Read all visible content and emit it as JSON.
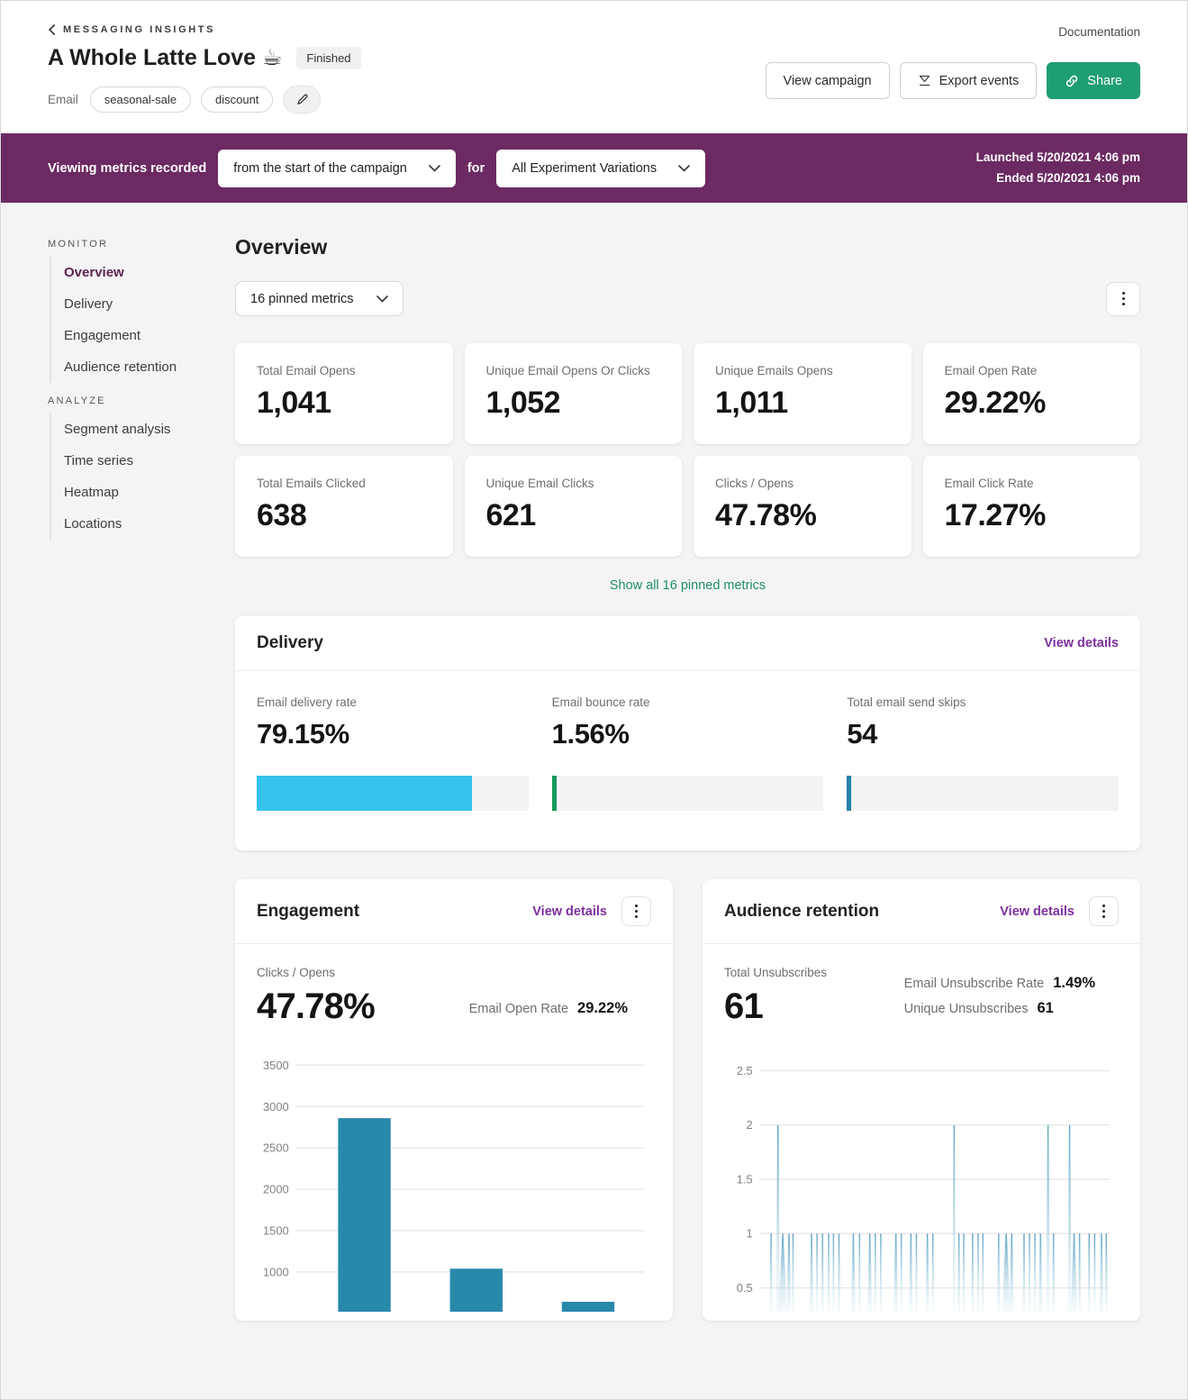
{
  "header": {
    "breadcrumb": "MESSAGING INSIGHTS",
    "title": "A Whole Latte Love ☕",
    "status_badge": "Finished",
    "channel_label": "Email",
    "tags": [
      "seasonal-sale",
      "discount"
    ],
    "documentation_link": "Documentation",
    "view_campaign_button": "View campaign",
    "export_events_button": "Export events",
    "share_button": "Share",
    "share_color": "#1f9e73"
  },
  "filter_bar": {
    "label": "Viewing metrics recorded",
    "range_dropdown": "from the start of the campaign",
    "connector": "for",
    "variation_dropdown": "All Experiment Variations",
    "launched": "Launched 5/20/2021 4:06 pm",
    "ended": "Ended 5/20/2021 4:06 pm",
    "background_color": "#6b2a62"
  },
  "sidebar": {
    "monitor_heading": "MONITOR",
    "monitor_items": [
      "Overview",
      "Delivery",
      "Engagement",
      "Audience retention"
    ],
    "active_item": "Overview",
    "analyze_heading": "ANALYZE",
    "analyze_items": [
      "Segment analysis",
      "Time series",
      "Heatmap",
      "Locations"
    ]
  },
  "overview": {
    "title": "Overview",
    "pinned_dropdown": "16 pinned metrics",
    "show_all_link": "Show all 16 pinned metrics",
    "cards": [
      {
        "label": "Total Email Opens",
        "value": "1,041"
      },
      {
        "label": "Unique Email Opens Or Clicks",
        "value": "1,052"
      },
      {
        "label": "Unique Emails Opens",
        "value": "1,011"
      },
      {
        "label": "Email Open Rate",
        "value": "29.22%"
      },
      {
        "label": "Total Emails Clicked",
        "value": "638"
      },
      {
        "label": "Unique Email Clicks",
        "value": "621"
      },
      {
        "label": "Clicks / Opens",
        "value": "47.78%"
      },
      {
        "label": "Email Click Rate",
        "value": "17.27%"
      }
    ]
  },
  "delivery": {
    "title": "Delivery",
    "view_details": "View details",
    "metrics": [
      {
        "label": "Email delivery rate",
        "value": "79.15%",
        "bar_fill_pct": 79.15,
        "bar_color": "#35c3ee"
      },
      {
        "label": "Email bounce rate",
        "value": "1.56%",
        "bar_fill_pct": 1.8,
        "bar_color": "#159a5c"
      },
      {
        "label": "Total email send skips",
        "value": "54",
        "bar_fill_pct": 1.6,
        "bar_color": "#2583ab"
      }
    ]
  },
  "engagement": {
    "title": "Engagement",
    "view_details": "View details",
    "primary_label": "Clicks / Opens",
    "primary_value": "47.78%",
    "secondary_label": "Email Open Rate",
    "secondary_value": "29.22%"
  },
  "audience_retention": {
    "title": "Audience retention",
    "view_details": "View details",
    "primary_label": "Total Unsubscribes",
    "primary_value": "61",
    "side_rows": [
      {
        "label": "Email Unsubscribe Rate",
        "value": "1.49%"
      },
      {
        "label": "Unique Unsubscribes",
        "value": "61"
      }
    ]
  },
  "icons": {
    "back": "chevron-left",
    "edit": "pencil",
    "export": "download-tray",
    "share": "link",
    "dropdown": "chevron-down",
    "menu": "kebab-vertical"
  },
  "chart_data": [
    {
      "id": "engagement",
      "type": "bar",
      "title": "",
      "values": [
        2860,
        1040,
        640
      ],
      "yticks": [
        1000,
        1500,
        2000,
        2500,
        3000,
        3500
      ],
      "ymin_visible": 520,
      "ymax_visible": 3700,
      "bar_color": "#2889ab",
      "grid": true,
      "note": "x-axis category labels are clipped by the card edge"
    },
    {
      "id": "audience_retention",
      "type": "area-spikes",
      "title": "",
      "yticks": [
        0.5,
        1,
        1.5,
        2,
        2.5
      ],
      "ymin_visible": 0.28,
      "ymax_visible": 2.72,
      "spike_gradient_top": "#58a0c2",
      "spike_gradient_bottom": "#d9ecf4",
      "grid": true,
      "spikes": [
        [
          1.2,
          1,
          3
        ],
        [
          3.2,
          2,
          4
        ],
        [
          4.6,
          1,
          9
        ],
        [
          6.4,
          1,
          5
        ],
        [
          7.6,
          1,
          2
        ],
        [
          13.0,
          1,
          4
        ],
        [
          14.6,
          1,
          2
        ],
        [
          16.2,
          1,
          3
        ],
        [
          18.0,
          1,
          2
        ],
        [
          19.4,
          1,
          2
        ],
        [
          21.0,
          1,
          3
        ],
        [
          25.2,
          1,
          5
        ],
        [
          27.0,
          1,
          2
        ],
        [
          30.0,
          1,
          5
        ],
        [
          31.6,
          1,
          2
        ],
        [
          33.2,
          1,
          2
        ],
        [
          37.6,
          1,
          5
        ],
        [
          39.2,
          1,
          2
        ],
        [
          42.0,
          1,
          4
        ],
        [
          43.6,
          1,
          2
        ],
        [
          46.8,
          1,
          4
        ],
        [
          48.4,
          1,
          2
        ],
        [
          54.6,
          2,
          3
        ],
        [
          56.0,
          1,
          3
        ],
        [
          57.4,
          1,
          2
        ],
        [
          60.0,
          1,
          3
        ],
        [
          61.6,
          1,
          2
        ],
        [
          63.0,
          1,
          2
        ],
        [
          67.6,
          1,
          3
        ],
        [
          69.8,
          1,
          9
        ],
        [
          71.4,
          1,
          5
        ],
        [
          75.0,
          1,
          3
        ],
        [
          76.6,
          1,
          2
        ],
        [
          78.2,
          1,
          2
        ],
        [
          79.8,
          1,
          4
        ],
        [
          82.0,
          2,
          4
        ],
        [
          83.6,
          1,
          3
        ],
        [
          88.3,
          2,
          4
        ],
        [
          89.6,
          1,
          7
        ],
        [
          91.2,
          1,
          3
        ],
        [
          94.0,
          1,
          3
        ],
        [
          95.6,
          1,
          2
        ],
        [
          97.6,
          1,
          4
        ],
        [
          99.0,
          1,
          3
        ]
      ]
    }
  ]
}
